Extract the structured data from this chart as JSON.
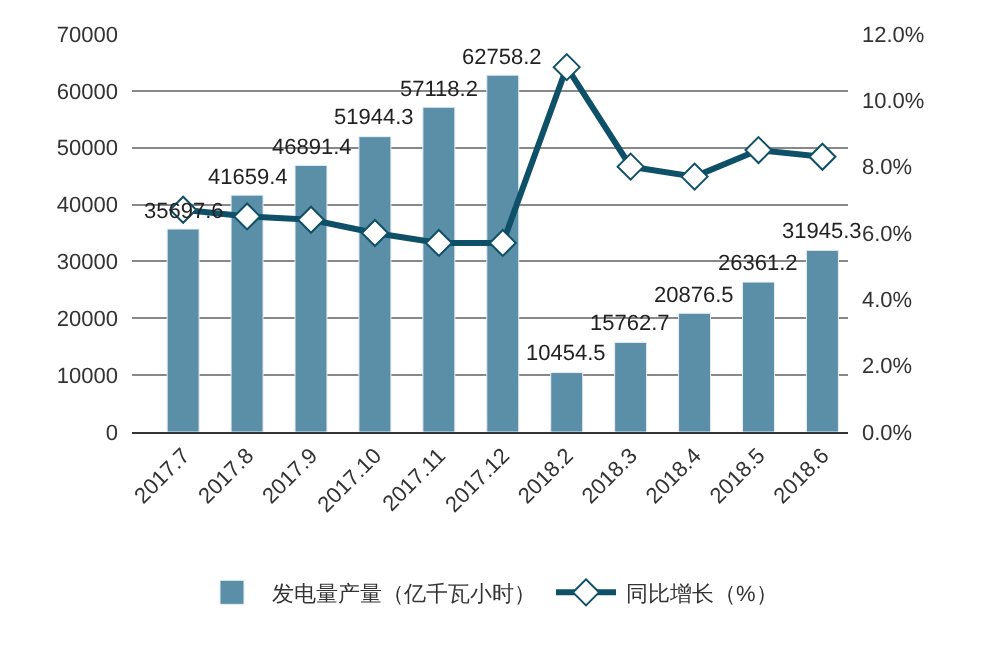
{
  "chart_data": {
    "type": "bar",
    "categories": [
      "2017.7",
      "2017.8",
      "2017.9",
      "2017.10",
      "2017.11",
      "2017.12",
      "2018.2",
      "2018.3",
      "2018.4",
      "2018.5",
      "2018.6"
    ],
    "series": [
      {
        "name": "发电量产量（亿千瓦小时）",
        "color": "#5b8fa8",
        "values": [
          35697.6,
          41659.4,
          46891.4,
          51944.3,
          57118.2,
          62758.2,
          10454.5,
          15762.7,
          20876.5,
          26361.2,
          31945.3
        ],
        "value_labels": [
          "35697.6",
          "41659.4",
          "46891.4",
          "51944.3",
          "57118.2",
          "62758.2",
          "10454.5",
          "15762.7",
          "20876.5",
          "26361.2",
          "31945.3"
        ]
      },
      {
        "name": "同比增长（%）",
        "type": "line",
        "axis": "y2",
        "color": "#0e5068",
        "marker": "diamond",
        "values": [
          6.7,
          6.5,
          6.4,
          6.0,
          5.7,
          5.7,
          11.0,
          8.0,
          7.7,
          8.5,
          8.3
        ]
      }
    ],
    "ylim": [
      0,
      70000
    ],
    "yticks": [
      0,
      10000,
      20000,
      30000,
      40000,
      50000,
      60000,
      70000
    ],
    "y2lim": [
      0,
      12
    ],
    "y2ticks": [
      {
        "value": 0,
        "label": "0.0%"
      },
      {
        "value": 2,
        "label": "2.0%"
      },
      {
        "value": 4,
        "label": "4.0%"
      },
      {
        "value": 6,
        "label": "6.0%"
      },
      {
        "value": 8,
        "label": "8.0%"
      },
      {
        "value": 10,
        "label": "10.0%"
      },
      {
        "value": 12,
        "label": "12.0%"
      }
    ],
    "grid": "y",
    "legend": "bottom"
  }
}
